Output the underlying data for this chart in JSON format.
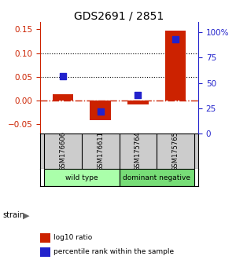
{
  "title": "GDS2691 / 2851",
  "categories": [
    "GSM176606",
    "GSM176611",
    "GSM175764",
    "GSM175765"
  ],
  "log10_ratio": [
    0.013,
    -0.042,
    -0.008,
    0.148
  ],
  "percentile_rank_pct": [
    57,
    22,
    38,
    93
  ],
  "bar_color": "#cc2200",
  "dot_color": "#2222cc",
  "ylim": [
    -0.07,
    0.165
  ],
  "y2lim": [
    0,
    110
  ],
  "yticks_left": [
    -0.05,
    0.0,
    0.05,
    0.1,
    0.15
  ],
  "yticks_right": [
    0,
    25,
    50,
    75,
    100
  ],
  "hline_dotted_vals": [
    0.05,
    0.1
  ],
  "legend_items": [
    "log10 ratio",
    "percentile rank within the sample"
  ],
  "legend_colors": [
    "#cc2200",
    "#2222cc"
  ],
  "bar_width": 0.55,
  "dot_size": 35,
  "title_fontsize": 10,
  "tick_fontsize": 7.5,
  "group_info": [
    {
      "label": "wild type",
      "start": 0,
      "end": 2,
      "color": "#aaffaa"
    },
    {
      "label": "dominant negative",
      "start": 2,
      "end": 4,
      "color": "#77dd77"
    }
  ],
  "sample_bg_color": "#cccccc",
  "strain_label": "strain",
  "strain_arrow": "▶"
}
